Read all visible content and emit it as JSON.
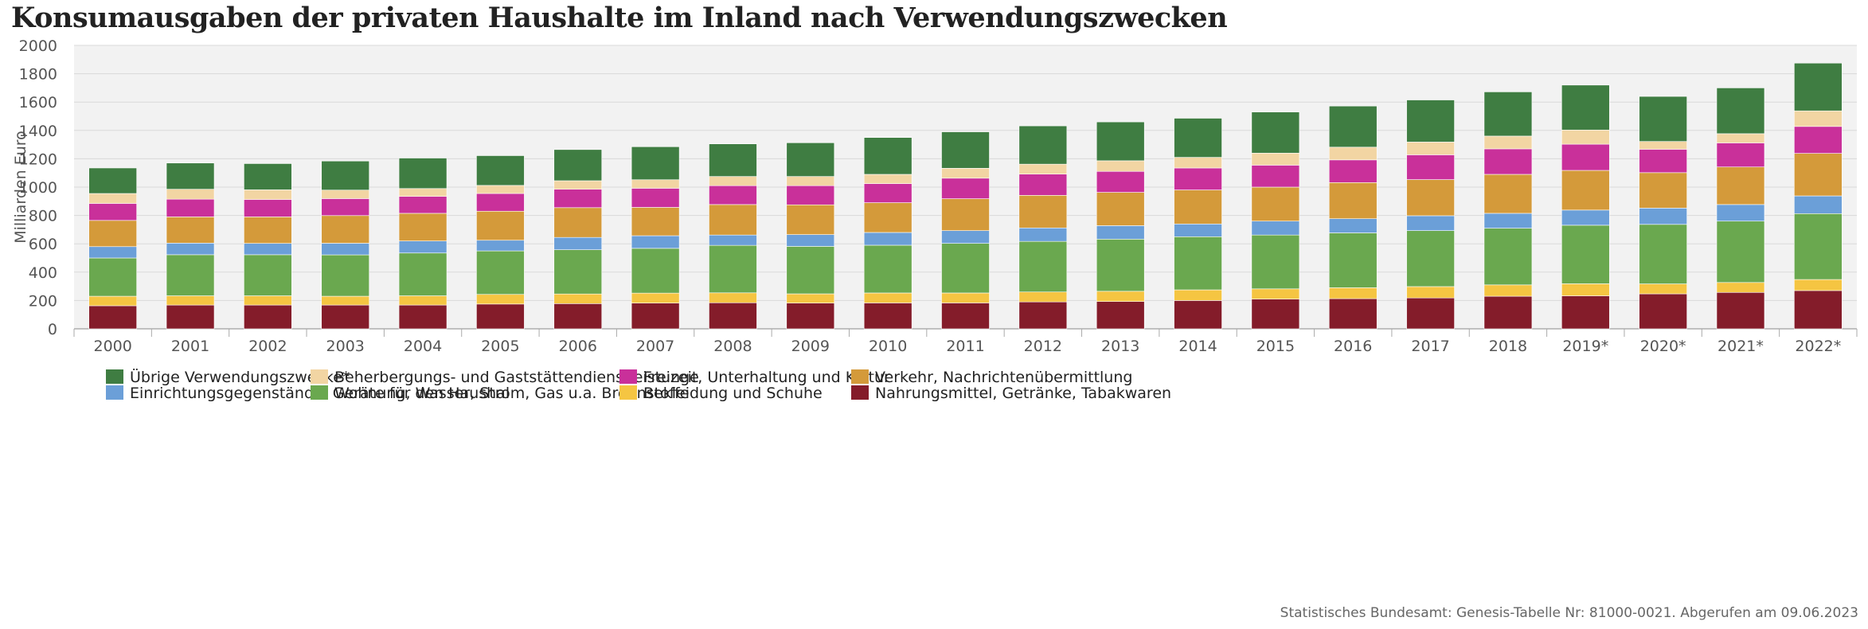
{
  "chart_data": {
    "type": "bar",
    "stacked": true,
    "title": "Konsumausgaben der privaten Haushalte im Inland nach Verwendungszwecken",
    "ylabel": "Milliarden Euro",
    "xlabel": "",
    "ylim": [
      0,
      2000
    ],
    "yticks": [
      "0",
      "200",
      "400",
      "600",
      "800",
      "1000",
      "1200",
      "1400",
      "1600",
      "1800",
      "2000"
    ],
    "grid": true,
    "legend_position": "bottom",
    "categories": [
      "2000",
      "2001",
      "2002",
      "2003",
      "2004",
      "2005",
      "2006",
      "2007",
      "2008",
      "2009",
      "2010",
      "2011",
      "2012",
      "2013",
      "2014",
      "2015",
      "2016",
      "2017",
      "2018",
      "2019*",
      "2020*",
      "2021*",
      "2022*"
    ],
    "series": [
      {
        "name": "Nahrungsmittel, Getränke, Tabakwaren",
        "color": "#841c2a",
        "values": [
          163,
          168,
          168,
          168,
          168,
          175,
          178,
          182,
          184,
          182,
          183,
          183,
          190,
          193,
          200,
          210,
          213,
          218,
          230,
          233,
          247,
          257,
          270
        ]
      },
      {
        "name": "Bekleidung und Schuhe",
        "color": "#f5c542",
        "values": [
          67,
          65,
          65,
          62,
          65,
          68,
          68,
          70,
          70,
          65,
          70,
          70,
          70,
          72,
          75,
          72,
          77,
          80,
          80,
          85,
          70,
          70,
          78
        ]
      },
      {
        "name": "Wohnung, Wasser, Strom, Gas u.a. Brennstoffe",
        "color": "#6aa84f",
        "values": [
          270,
          290,
          290,
          292,
          302,
          307,
          312,
          316,
          335,
          335,
          337,
          350,
          357,
          368,
          375,
          380,
          387,
          395,
          400,
          413,
          420,
          433,
          465
        ]
      },
      {
        "name": "Einrichtungsgegenstände, Geräte für den Haushalt",
        "color": "#6b9fd8",
        "values": [
          80,
          82,
          80,
          82,
          85,
          75,
          87,
          89,
          73,
          83,
          90,
          90,
          95,
          95,
          90,
          98,
          100,
          105,
          105,
          107,
          115,
          117,
          125
        ]
      },
      {
        "name": "Verkehr, Nachrichtenübermittlung",
        "color": "#d49a3a",
        "values": [
          185,
          185,
          187,
          195,
          195,
          205,
          210,
          200,
          215,
          210,
          210,
          225,
          230,
          235,
          240,
          240,
          255,
          255,
          275,
          280,
          250,
          265,
          300
        ]
      },
      {
        "name": "Freizeit, Unterhaltung und Kultur",
        "color": "#c9309a",
        "values": [
          120,
          125,
          123,
          120,
          120,
          125,
          130,
          135,
          133,
          135,
          135,
          145,
          150,
          148,
          155,
          155,
          160,
          175,
          180,
          185,
          165,
          170,
          190
        ]
      },
      {
        "name": "Beherbergungs- und Gaststättendienstleistungen",
        "color": "#f2d5a3",
        "values": [
          70,
          70,
          68,
          60,
          55,
          57,
          60,
          60,
          65,
          65,
          65,
          70,
          70,
          75,
          75,
          85,
          90,
          90,
          90,
          100,
          55,
          65,
          110
        ]
      },
      {
        "name": "Übrige Verwendungszwecke*",
        "color": "#3f7d42",
        "values": [
          180,
          185,
          185,
          205,
          215,
          210,
          220,
          233,
          230,
          238,
          260,
          257,
          270,
          274,
          276,
          290,
          290,
          297,
          312,
          317,
          318,
          323,
          337
        ]
      }
    ],
    "legend_order": [
      "Übrige Verwendungszwecke*",
      "Beherbergungs- und Gaststättendienstleistungen",
      "Freizeit, Unterhaltung und Kultur",
      "Verkehr, Nachrichtenübermittlung",
      "Einrichtungsgegenstände, Geräte für den Haushalt",
      "Wohnung, Wasser, Strom, Gas u.a. Brennstoffe",
      "Bekleidung und Schuhe",
      "Nahrungsmittel, Getränke, Tabakwaren"
    ],
    "legend_labels": [
      "Übrige Verwendungszwecke*",
      "Beherbergungs- und Gaststättendienstleistunge",
      "Freizeit, Unterhaltung und Kultur",
      "Verkehr, Nachrichtenübermittlung",
      "Einrichtungsgegenstände, Geräte für den Haushal",
      "Wohnung, Wasser, Strom, Gas u.a. Brennstoffe",
      "Bekleidung und Schuhe",
      "Nahrungsmittel, Getränke, Tabakwaren"
    ],
    "colors": {
      "plot_background": "#f2f2f2",
      "gridline": "#d9d9d9",
      "axis_text": "#555555"
    }
  },
  "source": "Statistisches Bundesamt: Genesis-Tabelle Nr: 81000-0021. Abgerufen am 09.06.2023"
}
